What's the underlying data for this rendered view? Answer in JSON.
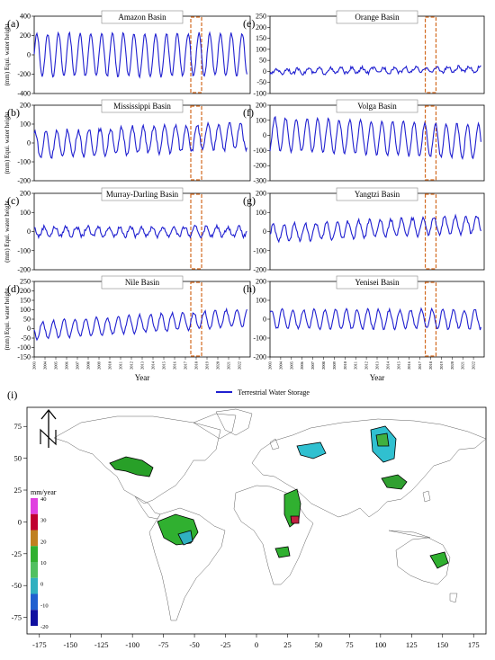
{
  "legend_label": "Terrestrial Water Storage",
  "xaxis_label": "Year",
  "ylabel": "(mm) Equi. water height",
  "year_ticks": [
    "2003",
    "2004",
    "2005",
    "2006",
    "2007",
    "2008",
    "2009",
    "2010",
    "2011",
    "2012",
    "2013",
    "2014",
    "2015",
    "2016",
    "2017",
    "2018",
    "2019",
    "2020",
    "2021",
    "2022"
  ],
  "colors": {
    "series": "#1f1fd0",
    "highlight": "#d2691e",
    "cbar_label": "#000000"
  },
  "chart_data": [
    {
      "type": "line",
      "panel": "(a)",
      "title": "Amazon Basin",
      "ylim": [
        -400,
        400
      ],
      "yticks": [
        -400,
        -200,
        0,
        200,
        400
      ],
      "yticks_color": "#000000",
      "amp": 220,
      "drift": [
        0,
        0
      ],
      "noise": 30,
      "highlight_years": [
        2017.5,
        2018.5
      ]
    },
    {
      "type": "line",
      "panel": "(b)",
      "title": "Mississippi Basin",
      "ylim": [
        -200,
        200
      ],
      "yticks": [
        -200,
        -100,
        0,
        100,
        200
      ],
      "yticks_color": "#000000",
      "amp": 70,
      "drift": [
        -10,
        40
      ],
      "noise": 25,
      "highlight_years": [
        2017.5,
        2018.5
      ]
    },
    {
      "type": "line",
      "panel": "(c)",
      "title": "Murray-Darling Basin",
      "ylim": [
        -200,
        200
      ],
      "yticks": [
        -200,
        -100,
        0,
        100,
        200
      ],
      "yticks_color": "#000000",
      "amp": 25,
      "drift": [
        0,
        0
      ],
      "noise": 20,
      "highlight_years": [
        2017.5,
        2018.5
      ]
    },
    {
      "type": "line",
      "panel": "(d)",
      "title": "Nile Basin",
      "ylim": [
        -150,
        250
      ],
      "yticks": [
        -150,
        -100,
        -50,
        0,
        50,
        100,
        150,
        200,
        250
      ],
      "yticks_color": "#000000",
      "amp": 45,
      "drift": [
        -10,
        60
      ],
      "noise": 15,
      "highlight_years": [
        2017.5,
        2018.5
      ]
    },
    {
      "type": "line",
      "panel": "(e)",
      "title": "Orange Basin",
      "ylim": [
        -100,
        250
      ],
      "yticks": [
        -100,
        -50,
        0,
        50,
        100,
        150,
        200,
        250
      ],
      "yticks_color": "#000000",
      "amp": 12,
      "drift": [
        0,
        10
      ],
      "noise": 15,
      "highlight_years": [
        2017.5,
        2018.5
      ]
    },
    {
      "type": "line",
      "panel": "(f)",
      "title": "Volga Basin",
      "ylim": [
        -300,
        200
      ],
      "yticks": [
        -300,
        -200,
        -100,
        0,
        100,
        200
      ],
      "yticks_color": "#000000",
      "amp": 110,
      "drift": [
        10,
        -40
      ],
      "noise": 20,
      "highlight_years": [
        2017.5,
        2018.5
      ]
    },
    {
      "type": "line",
      "panel": "(g)",
      "title": "Yangtzi Basin",
      "ylim": [
        -200,
        200
      ],
      "yticks": [
        -200,
        -100,
        0,
        100,
        200
      ],
      "yticks_color": "#000000",
      "amp": 45,
      "drift": [
        -10,
        40
      ],
      "noise": 20,
      "highlight_years": [
        2017.5,
        2018.5
      ]
    },
    {
      "type": "line",
      "panel": "(h)",
      "title": "Yenisei Basin",
      "ylim": [
        -200,
        200
      ],
      "yticks": [
        -200,
        -100,
        0,
        100,
        200
      ],
      "yticks_color": "#00b0c0",
      "amp": 50,
      "drift": [
        0,
        0
      ],
      "noise": 15,
      "highlight_years": [
        2017.5,
        2018.5
      ]
    }
  ],
  "map": {
    "panel": "(i)",
    "colorbar_unit": "mm/year",
    "colorbar_ticks": [
      "40",
      "30",
      "20",
      "10",
      "0",
      "-10",
      "-20"
    ],
    "colorbar_colors": [
      "#e040e0",
      "#c00030",
      "#c08020",
      "#30b030",
      "#50c060",
      "#30b0c0",
      "#2060d0",
      "#1010a0"
    ],
    "xticks": [
      "-175",
      "-150",
      "-125",
      "-100",
      "-75",
      "-50",
      "-25",
      "0",
      "25",
      "50",
      "75",
      "100",
      "125",
      "150",
      "175"
    ],
    "yticks": [
      "75",
      "50",
      "25",
      "0",
      "-25",
      "-50",
      "-75"
    ]
  }
}
